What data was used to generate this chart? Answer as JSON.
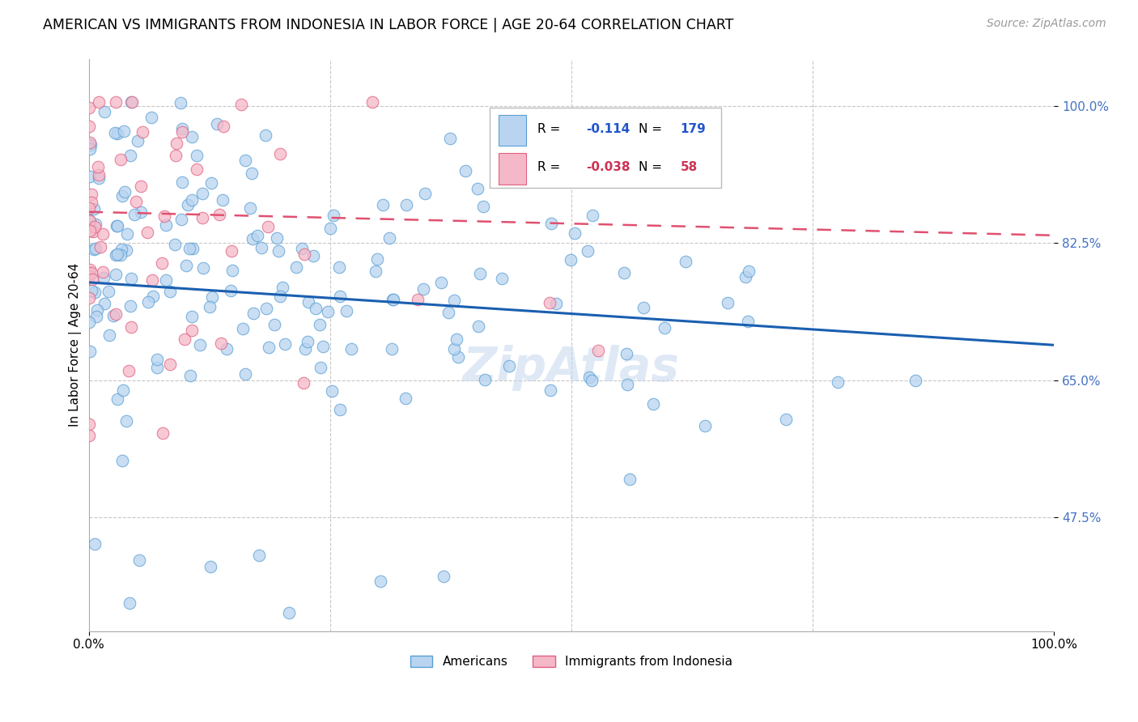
{
  "title": "AMERICAN VS IMMIGRANTS FROM INDONESIA IN LABOR FORCE | AGE 20-64 CORRELATION CHART",
  "source": "Source: ZipAtlas.com",
  "ylabel": "In Labor Force | Age 20-64",
  "xlim": [
    0.0,
    1.0
  ],
  "ylim": [
    0.33,
    1.06
  ],
  "yticks": [
    0.475,
    0.65,
    0.825,
    1.0
  ],
  "ytick_labels": [
    "47.5%",
    "65.0%",
    "82.5%",
    "100.0%"
  ],
  "xtick_labels": [
    "0.0%",
    "100.0%"
  ],
  "americans_R": -0.114,
  "americans_N": 179,
  "indonesia_R": -0.038,
  "indonesia_N": 58,
  "american_color": "#b8d4f0",
  "american_edge": "#5a9fd4",
  "indonesia_color": "#f5b8c8",
  "indonesia_edge": "#e06080",
  "trend_american_color": "#1a5fb0",
  "trend_indonesia_color": "#e05070",
  "background_color": "#ffffff",
  "title_fontsize": 12.5,
  "source_fontsize": 10,
  "axis_label_fontsize": 11,
  "tick_fontsize": 11,
  "watermark_text": "ZipAtlas",
  "legend_R_label": "R = ",
  "legend_N_label": "N = ",
  "legend_am_R": "-0.114",
  "legend_am_N": "179",
  "legend_id_R": "-0.038",
  "legend_id_N": "58",
  "legend_label_am": "Americans",
  "legend_label_id": "Immigrants from Indonesia"
}
